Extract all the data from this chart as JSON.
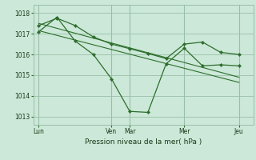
{
  "background_color": "#cce8d8",
  "grid_color": "#9abfaa",
  "line_color": "#2d6e2d",
  "title": "Pression niveau de la mer( hPa )",
  "yticks": [
    1013,
    1014,
    1015,
    1016,
    1017,
    1018
  ],
  "ylim": [
    1012.6,
    1018.4
  ],
  "xtick_labels": [
    "Lun",
    "Ven",
    "Mar",
    "Mer",
    "Jeu"
  ],
  "xtick_positions": [
    0,
    4,
    5,
    8,
    11
  ],
  "xlim": [
    -0.3,
    11.8
  ],
  "series1_x": [
    0,
    1,
    2,
    3,
    4,
    5,
    6,
    7,
    8,
    9,
    10,
    11
  ],
  "series1_y": [
    1017.1,
    1017.8,
    1016.65,
    1016.0,
    1014.82,
    1013.25,
    1013.2,
    1015.55,
    1016.3,
    1015.45,
    1015.5,
    1015.45
  ],
  "series2_x": [
    0,
    1,
    2,
    3,
    4,
    5,
    6,
    7,
    8,
    9,
    10,
    11
  ],
  "series2_y": [
    1017.4,
    1017.75,
    1017.4,
    1016.85,
    1016.5,
    1016.28,
    1016.05,
    1015.8,
    1016.5,
    1016.6,
    1016.1,
    1016.0
  ],
  "trend1_x": [
    0,
    11
  ],
  "trend1_y": [
    1017.5,
    1014.9
  ],
  "trend2_x": [
    0,
    11
  ],
  "trend2_y": [
    1017.15,
    1014.65
  ]
}
